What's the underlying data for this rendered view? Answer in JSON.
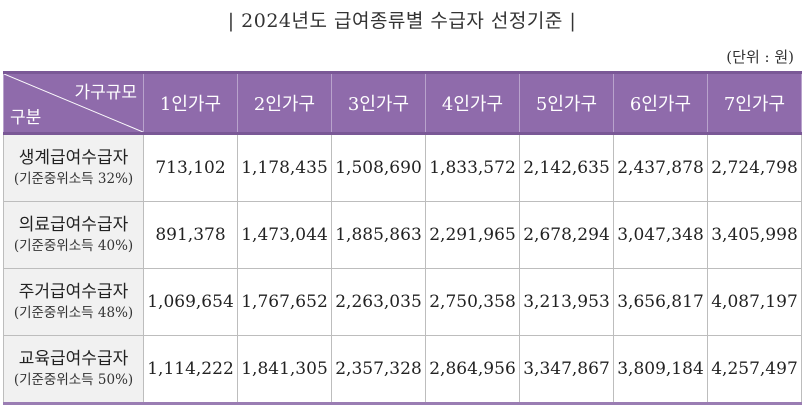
{
  "title": "| 2024년도 급여종류별 수급자 선정기준 |",
  "unit": "(단위 : 원)",
  "table": {
    "corner_top": "가구규모",
    "corner_bottom": "구분",
    "columns": [
      "1인가구",
      "2인가구",
      "3인가구",
      "4인가구",
      "5인가구",
      "6인가구",
      "7인가구"
    ],
    "rows": [
      {
        "name": "생계급여수급자",
        "sub": "(기준중위소득 32%)",
        "values": [
          "713,102",
          "1,178,435",
          "1,508,690",
          "1,833,572",
          "2,142,635",
          "2,437,878",
          "2,724,798"
        ]
      },
      {
        "name": "의료급여수급자",
        "sub": "(기준중위소득 40%)",
        "values": [
          "891,378",
          "1,473,044",
          "1,885,863",
          "2,291,965",
          "2,678,294",
          "3,047,348",
          "3,405,998"
        ]
      },
      {
        "name": "주거급여수급자",
        "sub": "(기준중위소득 48%)",
        "values": [
          "1,069,654",
          "1,767,652",
          "2,263,035",
          "2,750,358",
          "3,213,953",
          "3,656,817",
          "4,087,197"
        ]
      },
      {
        "name": "교육급여수급자",
        "sub": "(기준중위소득 50%)",
        "values": [
          "1,114,222",
          "1,841,305",
          "2,357,328",
          "2,864,956",
          "3,347,867",
          "3,809,184",
          "4,257,497"
        ]
      }
    ]
  },
  "colors": {
    "header_bg": "#8f6bab",
    "header_text": "#ffffff",
    "rowhead_bg": "#f1f1f1"
  }
}
